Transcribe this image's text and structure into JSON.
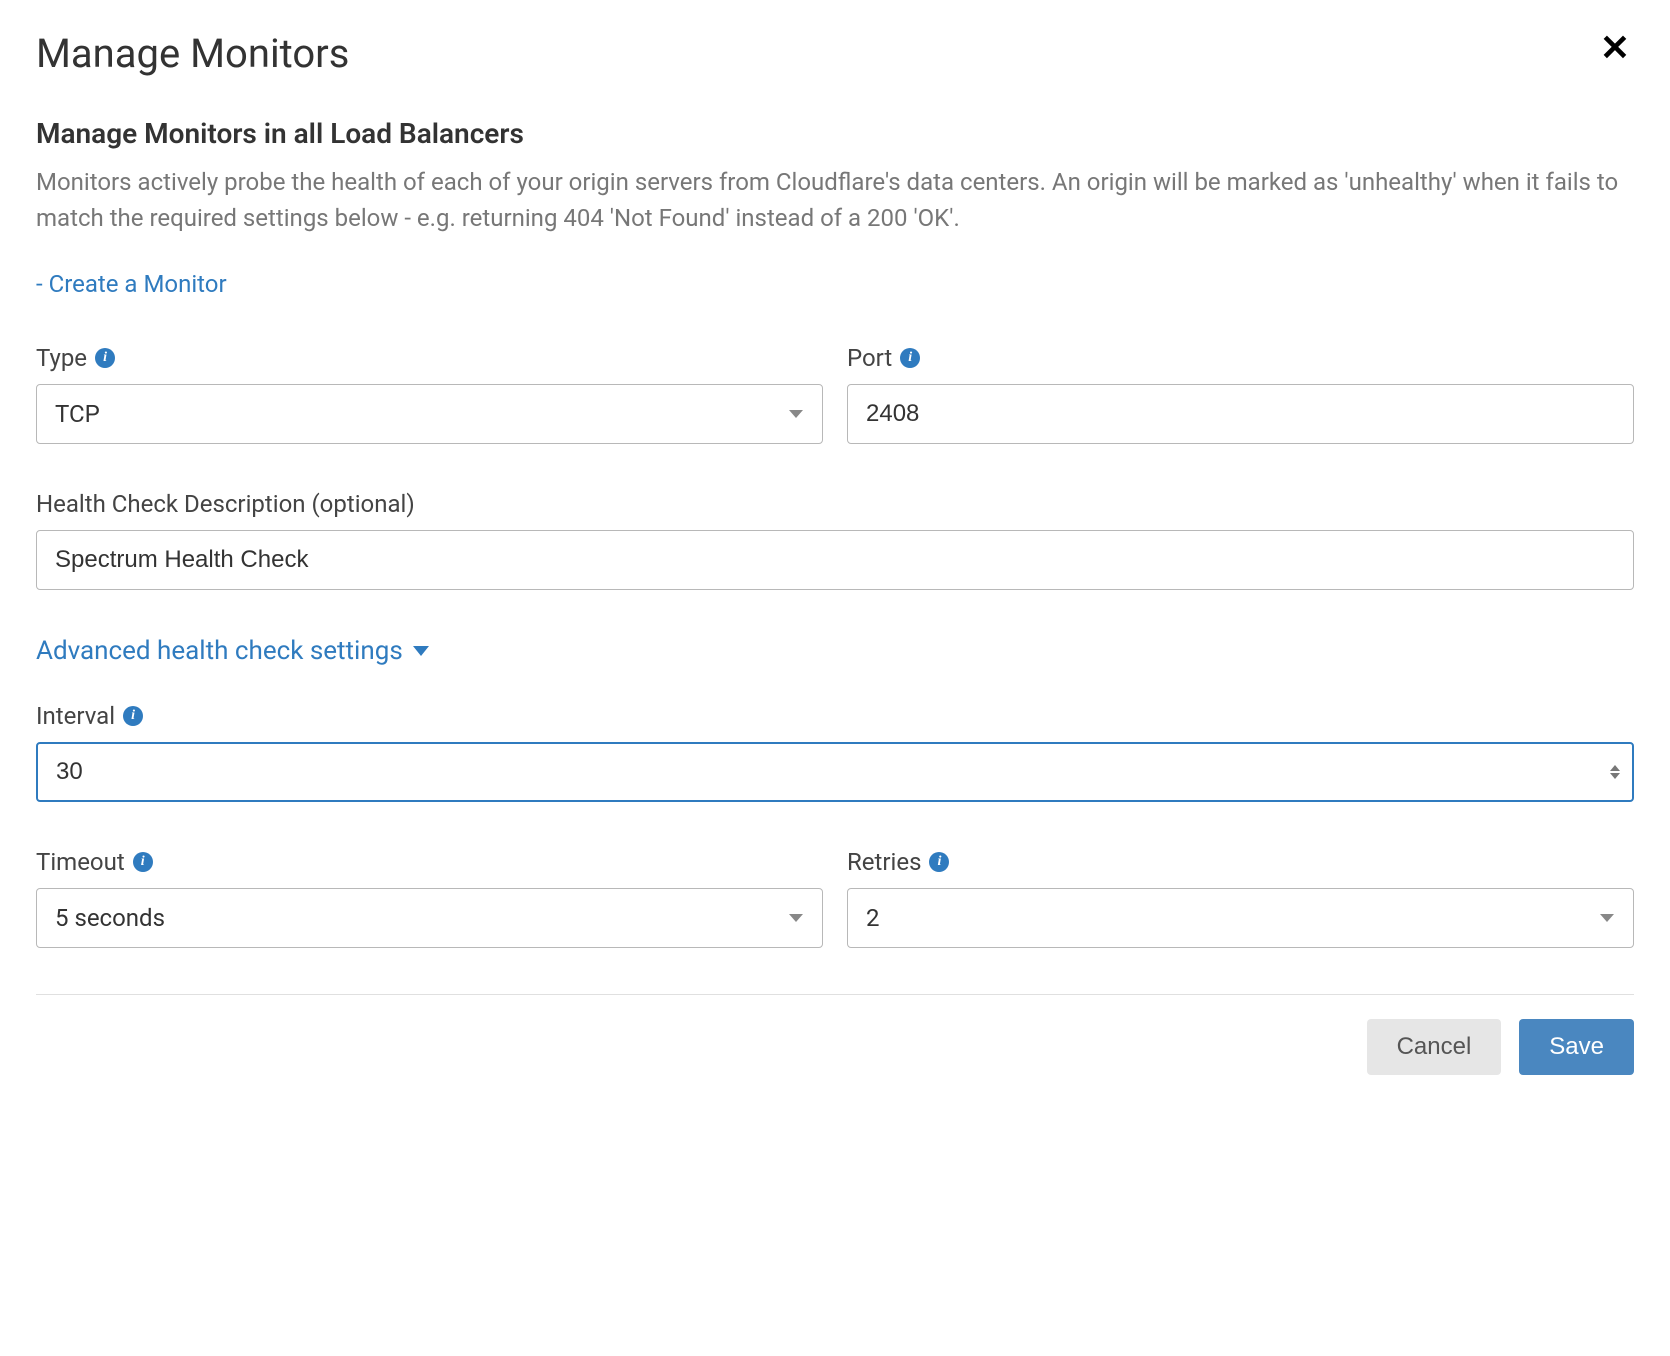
{
  "header": {
    "title": "Manage Monitors"
  },
  "section": {
    "subtitle": "Manage Monitors in all Load Balancers",
    "description": "Monitors actively probe the health of each of your origin servers from Cloudflare's data centers. An origin will be marked as 'unhealthy' when it fails to match the required settings below - e.g. returning 404 'Not Found' instead of a 200 'OK'.",
    "create_link": "- Create a Monitor"
  },
  "fields": {
    "type": {
      "label": "Type",
      "value": "TCP"
    },
    "port": {
      "label": "Port",
      "value": "2408"
    },
    "description": {
      "label": "Health Check Description (optional)",
      "value": "Spectrum Health Check"
    },
    "advanced_toggle": "Advanced health check settings",
    "interval": {
      "label": "Interval",
      "value": "30"
    },
    "timeout": {
      "label": "Timeout",
      "value": "5 seconds"
    },
    "retries": {
      "label": "Retries",
      "value": "2"
    }
  },
  "buttons": {
    "cancel": "Cancel",
    "save": "Save"
  },
  "colors": {
    "link": "#2f7bbf",
    "text": "#333333",
    "muted": "#777777",
    "border": "#b8b8b8",
    "primary_btn": "#4a87c0",
    "secondary_btn": "#e6e6e6"
  }
}
